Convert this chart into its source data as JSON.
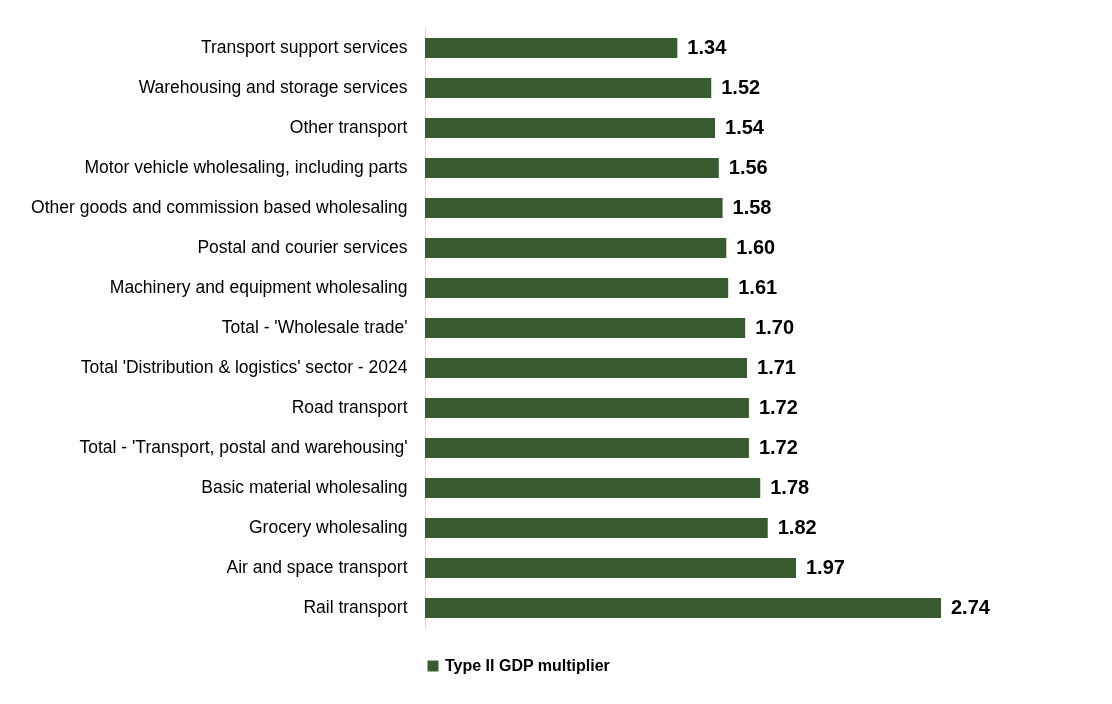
{
  "chart_data": {
    "type": "bar",
    "orientation": "horizontal",
    "categories": [
      "Transport support services",
      "Warehousing and storage services",
      "Other transport",
      "Motor vehicle wholesaling, including parts",
      "Other goods and commission based wholesaling",
      "Postal and courier services",
      "Machinery and equipment wholesaling",
      "Total - 'Wholesale trade'",
      "Total 'Distribution & logistics' sector - 2024",
      "Road transport",
      "Total - 'Transport, postal and warehousing'",
      "Basic material wholesaling",
      "Grocery wholesaling",
      "Air and space transport",
      "Rail transport"
    ],
    "series": [
      {
        "name": "Type II GDP multiplier",
        "color": "#375a2e",
        "values": [
          1.34,
          1.52,
          1.54,
          1.56,
          1.58,
          1.6,
          1.61,
          1.7,
          1.71,
          1.72,
          1.72,
          1.78,
          1.82,
          1.97,
          2.74
        ],
        "value_labels": [
          "1.34",
          "1.52",
          "1.54",
          "1.56",
          "1.58",
          "1.60",
          "1.61",
          "1.70",
          "1.71",
          "1.72",
          "1.72",
          "1.78",
          "1.82",
          "1.97",
          "2.74"
        ]
      }
    ],
    "legend": "bottom",
    "tick_labels": "y"
  }
}
